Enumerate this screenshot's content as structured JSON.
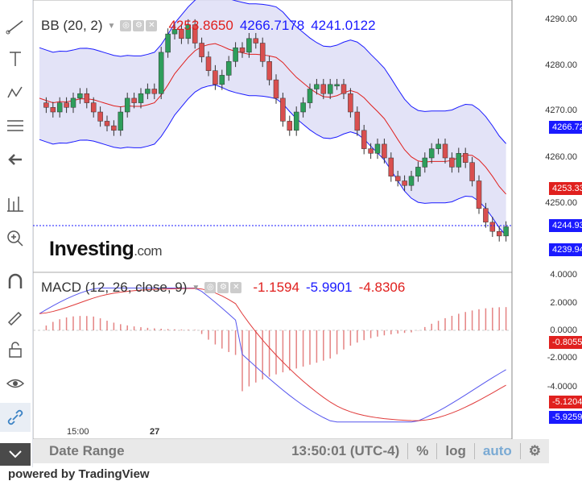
{
  "upper_legend": {
    "name": "BB (20, 2)",
    "v1": "4253.8650",
    "v2": "4266.7178",
    "v3": "4241.0122"
  },
  "lower_legend": {
    "name": "MACD (12, 26, close, 9)",
    "v1": "-1.1594",
    "v2": "-5.9901",
    "v3": "-4.8306"
  },
  "upper_axis": [
    "4290.00",
    "4280.00",
    "4270.00",
    "4260.00",
    "4250.00"
  ],
  "lower_axis": [
    "4.0000",
    "2.0000",
    "0.0000",
    "-2.0000",
    "-4.0000"
  ],
  "tags": {
    "bb_upper": "4266.72",
    "bb_mid": "4253.33",
    "price": "4244.93",
    "bb_lower": "4239.94",
    "macd_hist": "-0.8055",
    "macd_signal": "-5.1204",
    "macd_line": "-5.9259"
  },
  "x_labels": [
    "15:00",
    "27"
  ],
  "logo": {
    "brand": "Investing",
    "suffix": ".com"
  },
  "footer": {
    "date_range": "Date Range",
    "time": "13:50:01 (UTC-4)",
    "percent": "%",
    "log": "log",
    "auto": "auto"
  },
  "watermark": "powered by TradingView",
  "colors": {
    "up": "#2e9e5b",
    "down": "#d94f4f",
    "band": "#dcdcf5",
    "blue": "#1a1aff",
    "red": "#e0201e"
  }
}
